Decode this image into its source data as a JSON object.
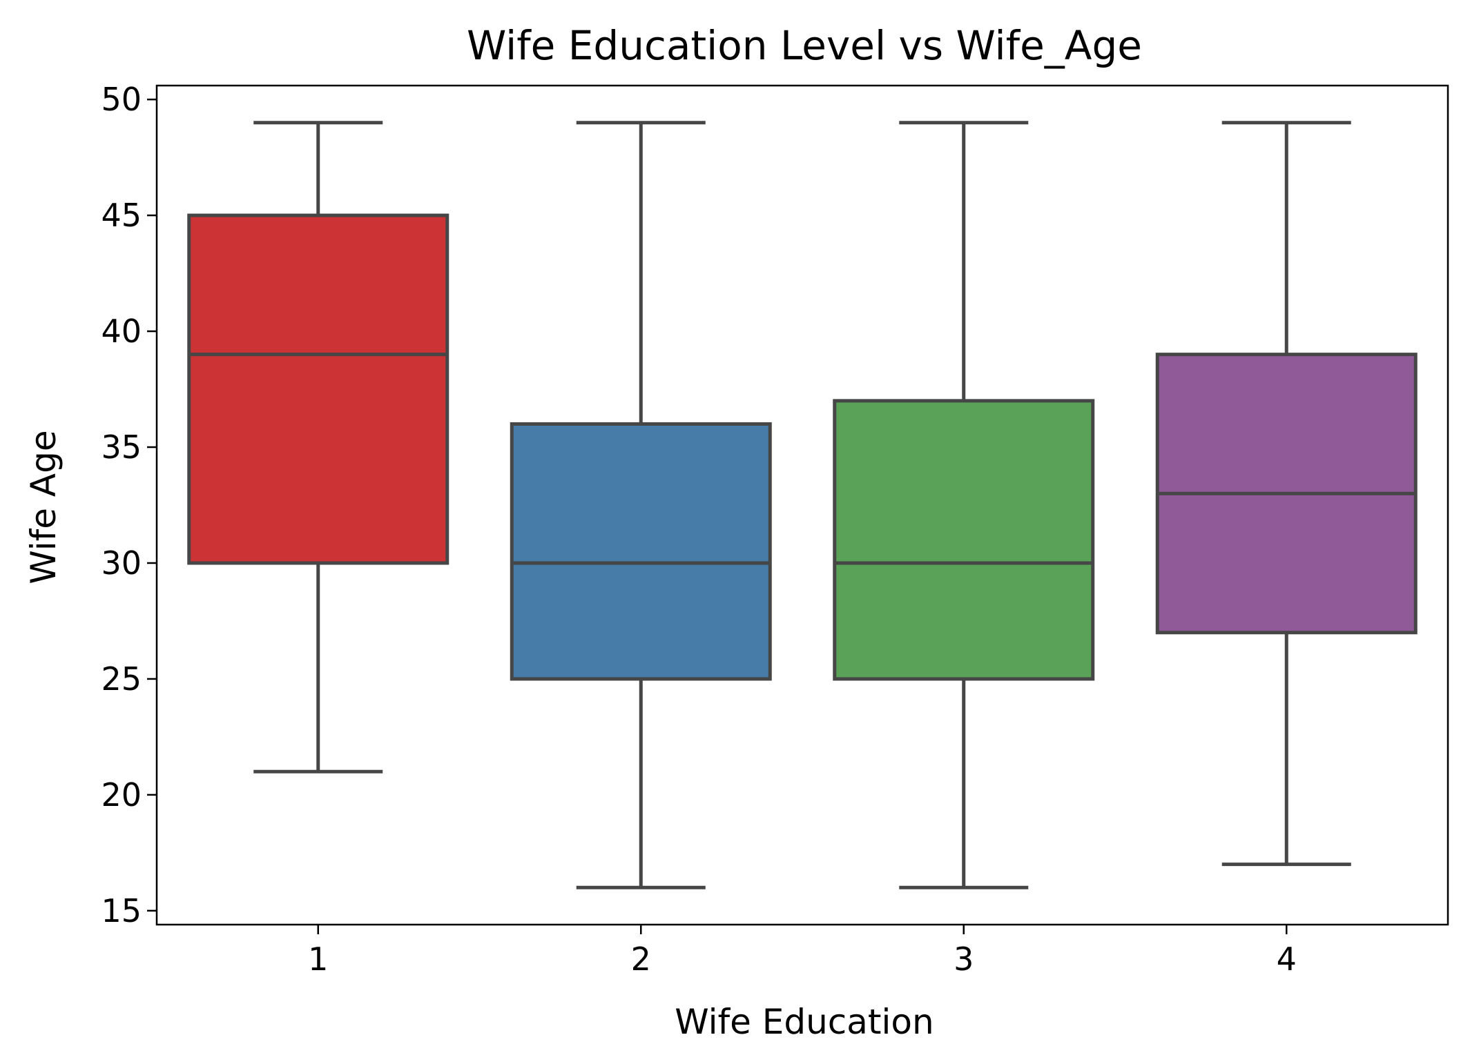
{
  "chart_data": {
    "type": "box",
    "title": "Wife Education Level vs Wife_Age",
    "xlabel": "Wife Education",
    "ylabel": "Wife Age",
    "categories": [
      "1",
      "2",
      "3",
      "4"
    ],
    "ylim": [
      14.4,
      50.6
    ],
    "yticks": [
      15,
      20,
      25,
      30,
      35,
      40,
      45,
      50
    ],
    "grid": false,
    "boxes": [
      {
        "category": "1",
        "whisker_low": 21,
        "q1": 30,
        "median": 39,
        "q3": 45,
        "whisker_high": 49,
        "color": "#cb3335"
      },
      {
        "category": "2",
        "whisker_low": 16,
        "q1": 25,
        "median": 30,
        "q3": 36,
        "whisker_high": 49,
        "color": "#477ca8"
      },
      {
        "category": "3",
        "whisker_low": 16,
        "q1": 25,
        "median": 30,
        "q3": 37,
        "whisker_high": 49,
        "color": "#59a257"
      },
      {
        "category": "4",
        "whisker_low": 17,
        "q1": 27,
        "median": 33,
        "q3": 39,
        "whisker_high": 49,
        "color": "#905998"
      }
    ],
    "line_color": "#464646"
  }
}
